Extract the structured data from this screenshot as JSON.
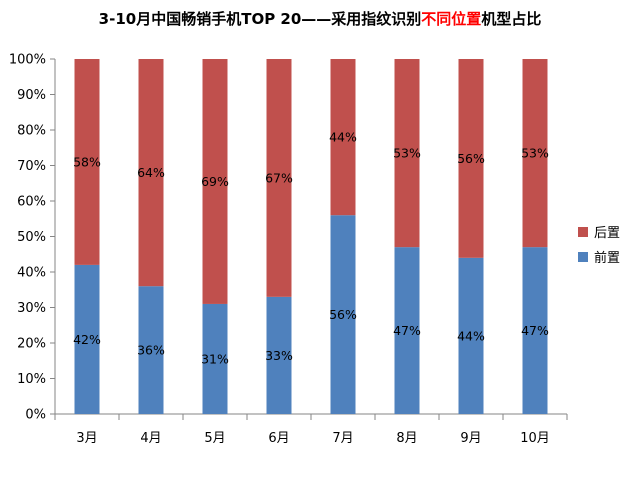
{
  "chart_data": {
    "type": "bar",
    "stacked": "percent",
    "title": {
      "prefix": "3-10月中国畅销手机TOP 20——采用指纹识别",
      "highlight": "不同位置",
      "suffix": "机型占比",
      "highlight_color": "#FF0000"
    },
    "categories": [
      "3月",
      "4月",
      "5月",
      "6月",
      "7月",
      "8月",
      "9月",
      "10月"
    ],
    "series": [
      {
        "name": "前置",
        "color": "#4F81BD",
        "values": [
          42,
          36,
          31,
          33,
          56,
          47,
          44,
          47
        ]
      },
      {
        "name": "后置",
        "color": "#C0504D",
        "values": [
          58,
          64,
          69,
          67,
          44,
          53,
          56,
          53
        ]
      }
    ],
    "data_labels": [
      {
        "front": "42%",
        "back": "58%"
      },
      {
        "front": "36%",
        "back": "64%"
      },
      {
        "front": "31%",
        "back": "69%"
      },
      {
        "front": "33%",
        "back": "67%"
      },
      {
        "front": "56%",
        "back": "44%"
      },
      {
        "front": "47%",
        "back": "53%"
      },
      {
        "front": "44%",
        "back": "56%"
      },
      {
        "front": "47%",
        "back": "53%"
      }
    ],
    "y_ticks": [
      "0%",
      "10%",
      "20%",
      "30%",
      "40%",
      "50%",
      "60%",
      "70%",
      "80%",
      "90%",
      "100%"
    ],
    "ylim": [
      0,
      100
    ],
    "grid": false,
    "legend": {
      "placement": "right",
      "order": [
        "后置",
        "前置"
      ]
    }
  }
}
